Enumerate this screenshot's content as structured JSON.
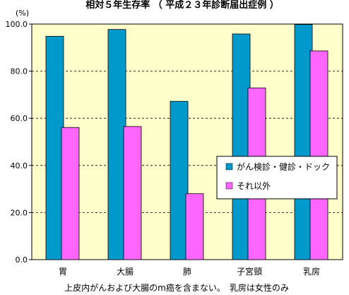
{
  "chart_data": {
    "type": "bar",
    "title": "相対５年生存率 （ 平成２３年診断届出症例 ）",
    "ylabel": "(%)",
    "ylim": [
      0,
      100
    ],
    "yticks": [
      "0.0",
      "20.0",
      "40.0",
      "60.0",
      "80.0",
      "100.0"
    ],
    "categories": [
      "胃",
      "大腸",
      "肺",
      "子宮頸",
      "乳房"
    ],
    "series": [
      {
        "name": "がん検診・健診・ドック",
        "values": [
          94.8,
          97.7,
          67.2,
          95.8,
          99.8
        ],
        "color": "#0099cc"
      },
      {
        "name": "それ以外",
        "values": [
          56.1,
          56.5,
          28.0,
          72.9,
          88.6
        ],
        "color": "#ff66ff"
      }
    ],
    "plot_background": "#ffffcc",
    "grid": "horizontal-dashed",
    "legend_position": "right-middle",
    "footnote": "上皮内がんおよび大腸のm癌を含まない。　乳房は女性のみ"
  }
}
